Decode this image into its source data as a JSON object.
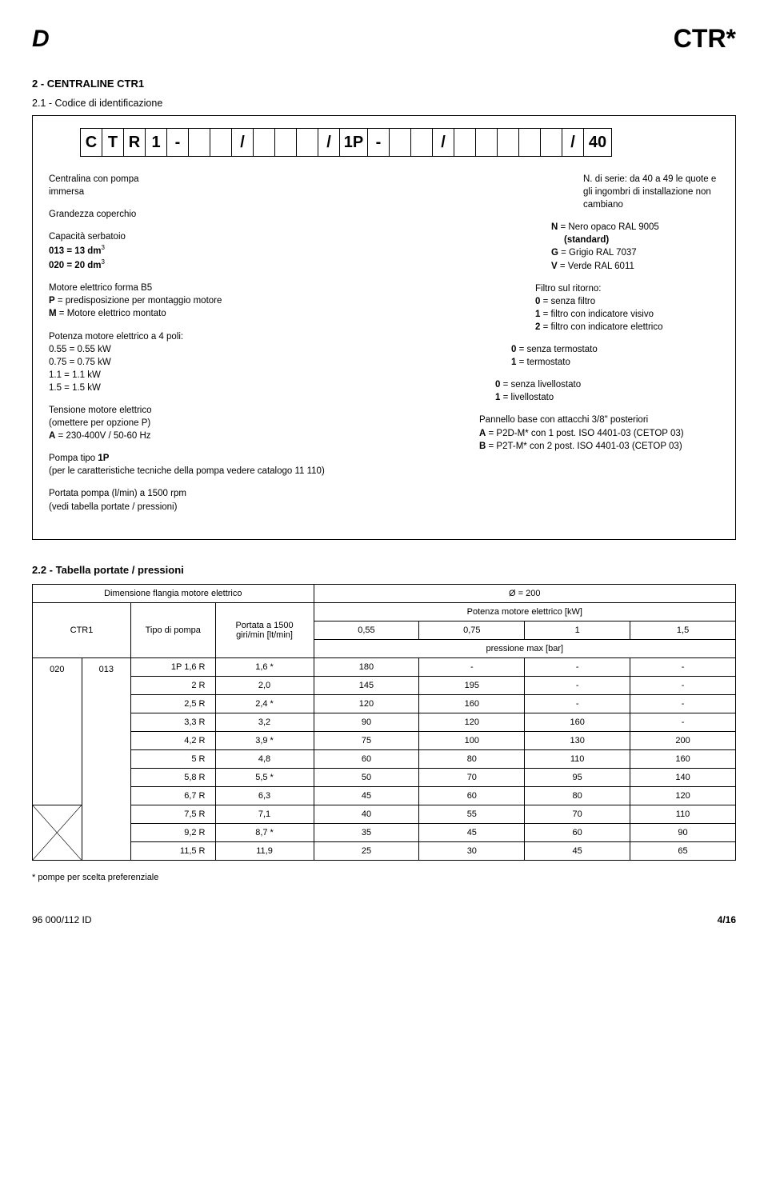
{
  "header": {
    "logo": "D",
    "title": "CTR*"
  },
  "section1": {
    "title": "2 - CENTRALINE CTR1",
    "subtitle": "2.1 - Codice di identificazione",
    "code": [
      "C",
      "T",
      "R",
      "1",
      "-",
      "",
      "",
      "/",
      "",
      "",
      "",
      "/",
      "1P",
      "-",
      "",
      "",
      "/",
      "",
      "",
      "",
      "",
      "",
      "/",
      "40"
    ],
    "left": {
      "l1": "Centralina con pompa",
      "l1b": "immersa",
      "l2": "Grandezza coperchio",
      "cap": "Capacità serbatoio",
      "cap1": "013 = 13 dm",
      "cap2": "020 = 20 dm",
      "sup3": "3",
      "mot": "Motore elettrico forma B5",
      "motP": "P = predisposizione per montaggio motore",
      "motM": "M = Motore elettrico montato",
      "pot": "Potenza motore elettrico a 4 poli:",
      "p55": "0.55 = 0.55 kW",
      "p75": "0.75 = 0.75 kW",
      "p11": "1.1 = 1.1 kW",
      "p15": "1.5 = 1.5 kW",
      "ten": "Tensione motore elettrico",
      "ten2": "(omettere per opzione P)",
      "tenA": "A = 230-400V / 50-60 Hz",
      "pompa": "Pompa tipo 1P",
      "pompa2": "(per le caratteristiche tecniche della pompa vedere catalogo 11 110)",
      "portata": "Portata pompa (l/min) a 1500 rpm",
      "portata2": "(vedi tabella portate / pressioni)"
    },
    "right": {
      "serie": "N. di serie: da 40 a 49 le quote e gli ingombri di installazione non cambiano",
      "N": "N = Nero opaco RAL 9005 (standard)",
      "G": "G = Grigio RAL 7037",
      "V": "V = Verde RAL 6011",
      "filtro": "Filtro sul ritorno:",
      "f0": "0 = senza filtro",
      "f1": "1 = filtro con indicatore visivo",
      "f2": "2 = filtro con indicatore elettrico",
      "t0": "0 = senza termostato",
      "t1": "1 = termostato",
      "liv0": "0 = senza livellostato",
      "liv1": "1 = livellostato",
      "pan": "Pannello base con attacchi 3/8\" posteriori",
      "panA": "A = P2D-M* con 1 post. ISO 4401-03 (CETOP 03)",
      "panB": "B = P2T-M* con 2 post. ISO 4401-03 (CETOP 03)"
    }
  },
  "section2": {
    "title": "2.2 - Tabella portate / pressioni",
    "dim_label": "Dimensione flangia motore elettrico",
    "diam": "Ø = 200",
    "ctr1_label": "CTR1",
    "tipo_label": "Tipo di pompa",
    "portata_label": "Portata a 1500 giri/min [lt/min]",
    "potenza_label": "Potenza motore elettrico [kW]",
    "pressione_label": "pressione max [bar]",
    "kw_cols": [
      "0,55",
      "0,75",
      "1",
      "1,5"
    ],
    "ctr_a": "020",
    "ctr_b": "013",
    "rows": [
      {
        "tipo": "1P 1,6 R",
        "port": "1,6 *",
        "v": [
          "180",
          "-",
          "-",
          "-"
        ]
      },
      {
        "tipo": "2 R",
        "port": "2,0",
        "v": [
          "145",
          "195",
          "-",
          "-"
        ]
      },
      {
        "tipo": "2,5 R",
        "port": "2,4 *",
        "v": [
          "120",
          "160",
          "-",
          "-"
        ]
      },
      {
        "tipo": "3,3 R",
        "port": "3,2",
        "v": [
          "90",
          "120",
          "160",
          "-"
        ]
      },
      {
        "tipo": "4,2 R",
        "port": "3,9 *",
        "v": [
          "75",
          "100",
          "130",
          "200"
        ]
      },
      {
        "tipo": "5 R",
        "port": "4,8",
        "v": [
          "60",
          "80",
          "110",
          "160"
        ]
      },
      {
        "tipo": "5,8 R",
        "port": "5,5 *",
        "v": [
          "50",
          "70",
          "95",
          "140"
        ]
      },
      {
        "tipo": "6,7 R",
        "port": "6,3",
        "v": [
          "45",
          "60",
          "80",
          "120"
        ]
      },
      {
        "tipo": "7,5 R",
        "port": "7,1",
        "v": [
          "40",
          "55",
          "70",
          "110"
        ]
      },
      {
        "tipo": "9,2 R",
        "port": "8,7 *",
        "v": [
          "35",
          "45",
          "60",
          "90"
        ]
      },
      {
        "tipo": "11,5 R",
        "port": "11,9",
        "v": [
          "25",
          "30",
          "45",
          "65"
        ]
      }
    ],
    "note": "* pompe per scelta preferenziale"
  },
  "footer": {
    "left": "96 000/112 ID",
    "right": "4/16"
  }
}
